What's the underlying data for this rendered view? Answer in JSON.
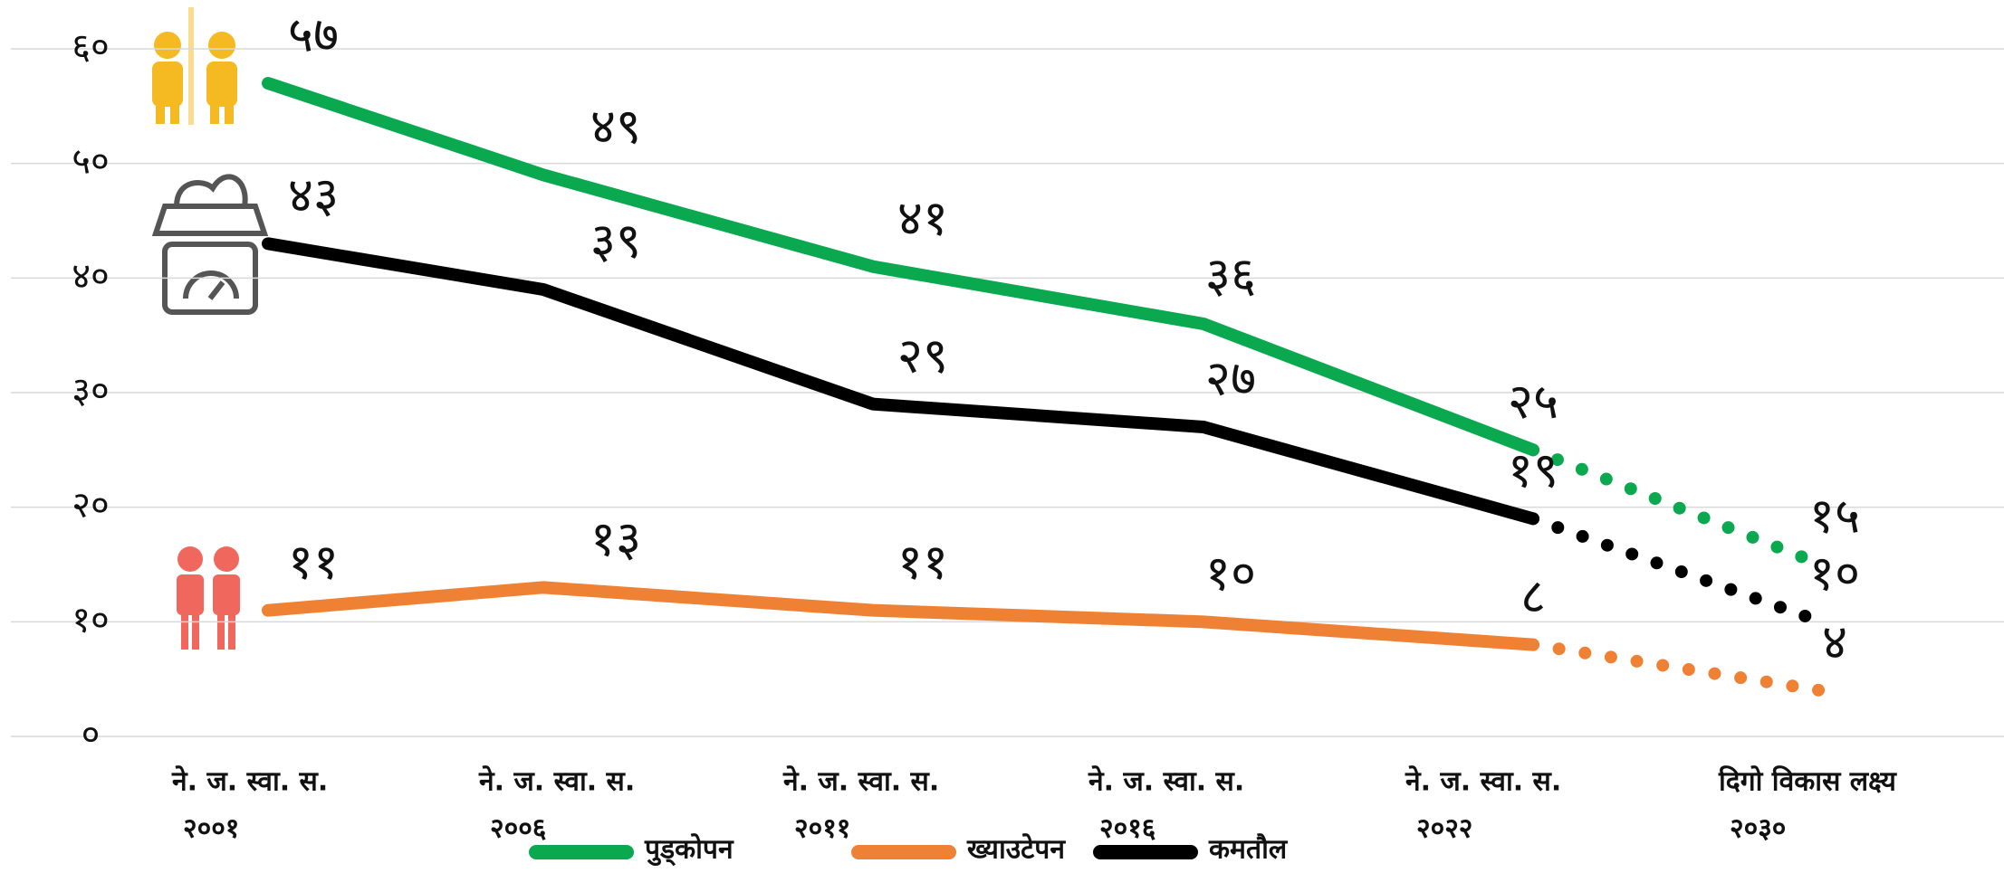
{
  "chart_data": {
    "type": "line",
    "categories": [
      [
        "ने. ज. स्वा. स.",
        "२००१"
      ],
      [
        "ने. ज. स्वा. स.",
        "२००६"
      ],
      [
        "ने. ज. स्वा. स.",
        "२०११"
      ],
      [
        "ने. ज. स्वा. स.",
        "२०१६"
      ],
      [
        "ने. ज. स्वा. स.",
        "२०२२"
      ],
      [
        "दिगो विकास लक्ष्य",
        "२०३०"
      ]
    ],
    "series": [
      {
        "name": "पुड्कोपन",
        "color": "#0aa84f",
        "values": [
          57,
          49,
          41,
          36,
          25,
          15
        ],
        "value_labels": [
          "५७",
          "४९",
          "४१",
          "३६",
          "२५",
          "१५"
        ]
      },
      {
        "name": "ख्याउटेपन",
        "color": "#ef8134",
        "values": [
          11,
          13,
          11,
          10,
          8,
          4
        ],
        "value_labels": [
          "११",
          "१३",
          "११",
          "१०",
          "८",
          "४"
        ]
      },
      {
        "name": "कमतौल",
        "color": "#000000",
        "values": [
          43,
          39,
          29,
          27,
          19,
          10
        ],
        "value_labels": [
          "४३",
          "३९",
          "२९",
          "२७",
          "१९",
          "१०"
        ]
      }
    ],
    "ylim": [
      0,
      60
    ],
    "yticks": [
      {
        "value": 0,
        "label": "०"
      },
      {
        "value": 10,
        "label": "१०"
      },
      {
        "value": 20,
        "label": "२०"
      },
      {
        "value": 30,
        "label": "३०"
      },
      {
        "value": 40,
        "label": "४०"
      },
      {
        "value": 50,
        "label": "५०"
      },
      {
        "value": 60,
        "label": "६०"
      }
    ],
    "grid": true
  }
}
